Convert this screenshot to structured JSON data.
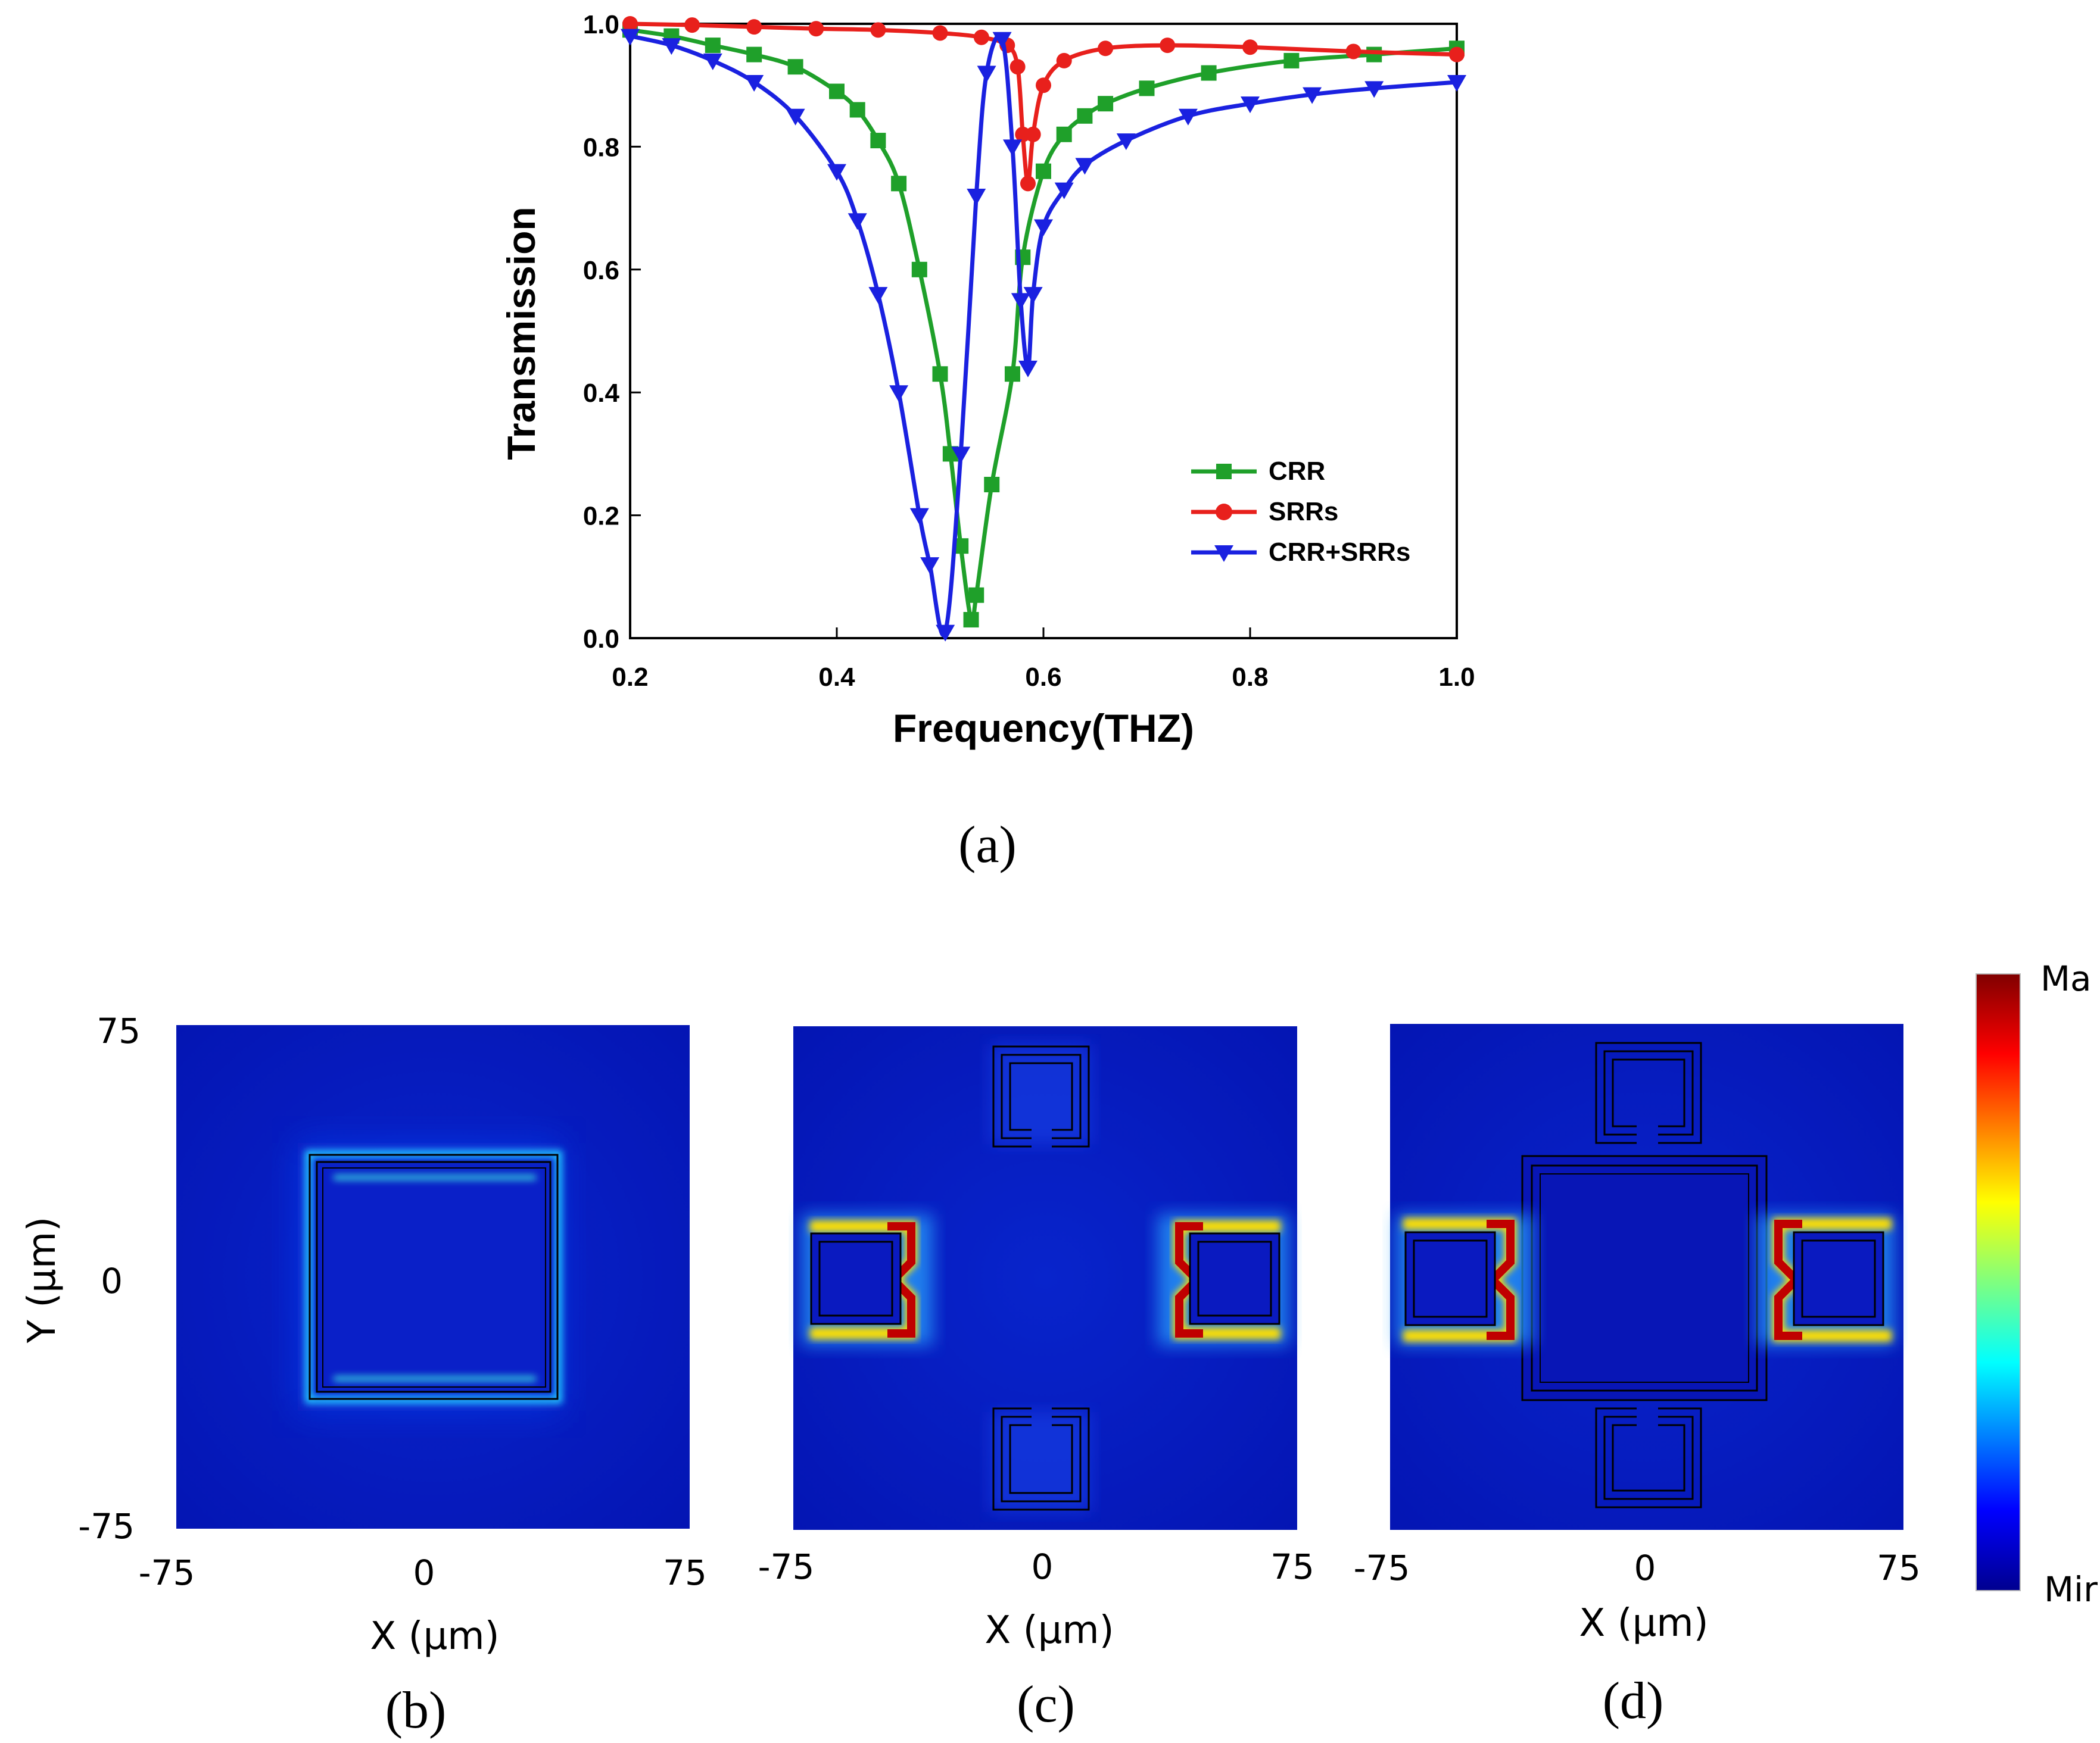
{
  "chart_data": [
    {
      "type": "line",
      "title": "",
      "xlabel": "Frequency(THZ)",
      "ylabel": "Transmission",
      "xlim": [
        0.2,
        1.0
      ],
      "ylim": [
        0.0,
        1.0
      ],
      "xticks": [
        "0.2",
        "0.4",
        "0.6",
        "0.8",
        "1.0"
      ],
      "yticks": [
        "0.0",
        "0.2",
        "0.4",
        "0.6",
        "0.8",
        "1.0"
      ],
      "grid": false,
      "legend_position": "bottom-right",
      "series": [
        {
          "name": "CRR",
          "color": "#1fa02a",
          "marker": "square",
          "x": [
            0.2,
            0.24,
            0.28,
            0.32,
            0.36,
            0.4,
            0.42,
            0.44,
            0.46,
            0.48,
            0.5,
            0.51,
            0.52,
            0.53,
            0.535,
            0.55,
            0.57,
            0.58,
            0.6,
            0.62,
            0.64,
            0.66,
            0.7,
            0.76,
            0.84,
            0.92,
            1.0
          ],
          "y": [
            0.99,
            0.98,
            0.965,
            0.95,
            0.93,
            0.89,
            0.86,
            0.81,
            0.74,
            0.6,
            0.43,
            0.3,
            0.15,
            0.03,
            0.07,
            0.25,
            0.43,
            0.62,
            0.76,
            0.82,
            0.85,
            0.87,
            0.895,
            0.92,
            0.94,
            0.95,
            0.96
          ]
        },
        {
          "name": "SRRs",
          "color": "#e8201c",
          "marker": "circle",
          "x": [
            0.2,
            0.26,
            0.32,
            0.38,
            0.44,
            0.5,
            0.54,
            0.565,
            0.575,
            0.58,
            0.585,
            0.59,
            0.6,
            0.62,
            0.66,
            0.72,
            0.8,
            0.9,
            1.0
          ],
          "y": [
            1.0,
            0.998,
            0.995,
            0.992,
            0.99,
            0.985,
            0.978,
            0.965,
            0.93,
            0.82,
            0.74,
            0.82,
            0.9,
            0.94,
            0.96,
            0.965,
            0.962,
            0.955,
            0.95
          ]
        },
        {
          "name": "CRR+SRRs",
          "color": "#1a21e0",
          "marker": "triangle-down",
          "x": [
            0.2,
            0.24,
            0.28,
            0.32,
            0.36,
            0.4,
            0.42,
            0.44,
            0.46,
            0.48,
            0.49,
            0.505,
            0.52,
            0.535,
            0.545,
            0.56,
            0.57,
            0.578,
            0.585,
            0.59,
            0.6,
            0.62,
            0.64,
            0.68,
            0.74,
            0.8,
            0.86,
            0.92,
            1.0
          ],
          "y": [
            0.98,
            0.965,
            0.94,
            0.905,
            0.85,
            0.76,
            0.68,
            0.56,
            0.4,
            0.2,
            0.12,
            0.01,
            0.3,
            0.72,
            0.92,
            0.975,
            0.8,
            0.55,
            0.44,
            0.56,
            0.67,
            0.73,
            0.77,
            0.81,
            0.85,
            0.87,
            0.885,
            0.895,
            0.905
          ]
        }
      ]
    },
    {
      "type": "heatmap",
      "panels": [
        {
          "label": "(b)",
          "structure": "CRR"
        },
        {
          "label": "(c)",
          "structure": "SRRs"
        },
        {
          "label": "(d)",
          "structure": "CRR+SRRs"
        }
      ],
      "xlabel": "X (μm)",
      "ylabel": "Y (μm)",
      "xticks": [
        "-75",
        "0",
        "75"
      ],
      "yticks": [
        "75",
        "0",
        "-75"
      ],
      "xlim": [
        -75,
        75
      ],
      "ylim": [
        -75,
        75
      ],
      "colorbar": {
        "max_label": "Ma",
        "min_label": "Mir",
        "colormap": "jet"
      }
    }
  ],
  "captions": {
    "a": "(a)",
    "b": "(b)",
    "c": "(c)",
    "d": "(d)"
  }
}
